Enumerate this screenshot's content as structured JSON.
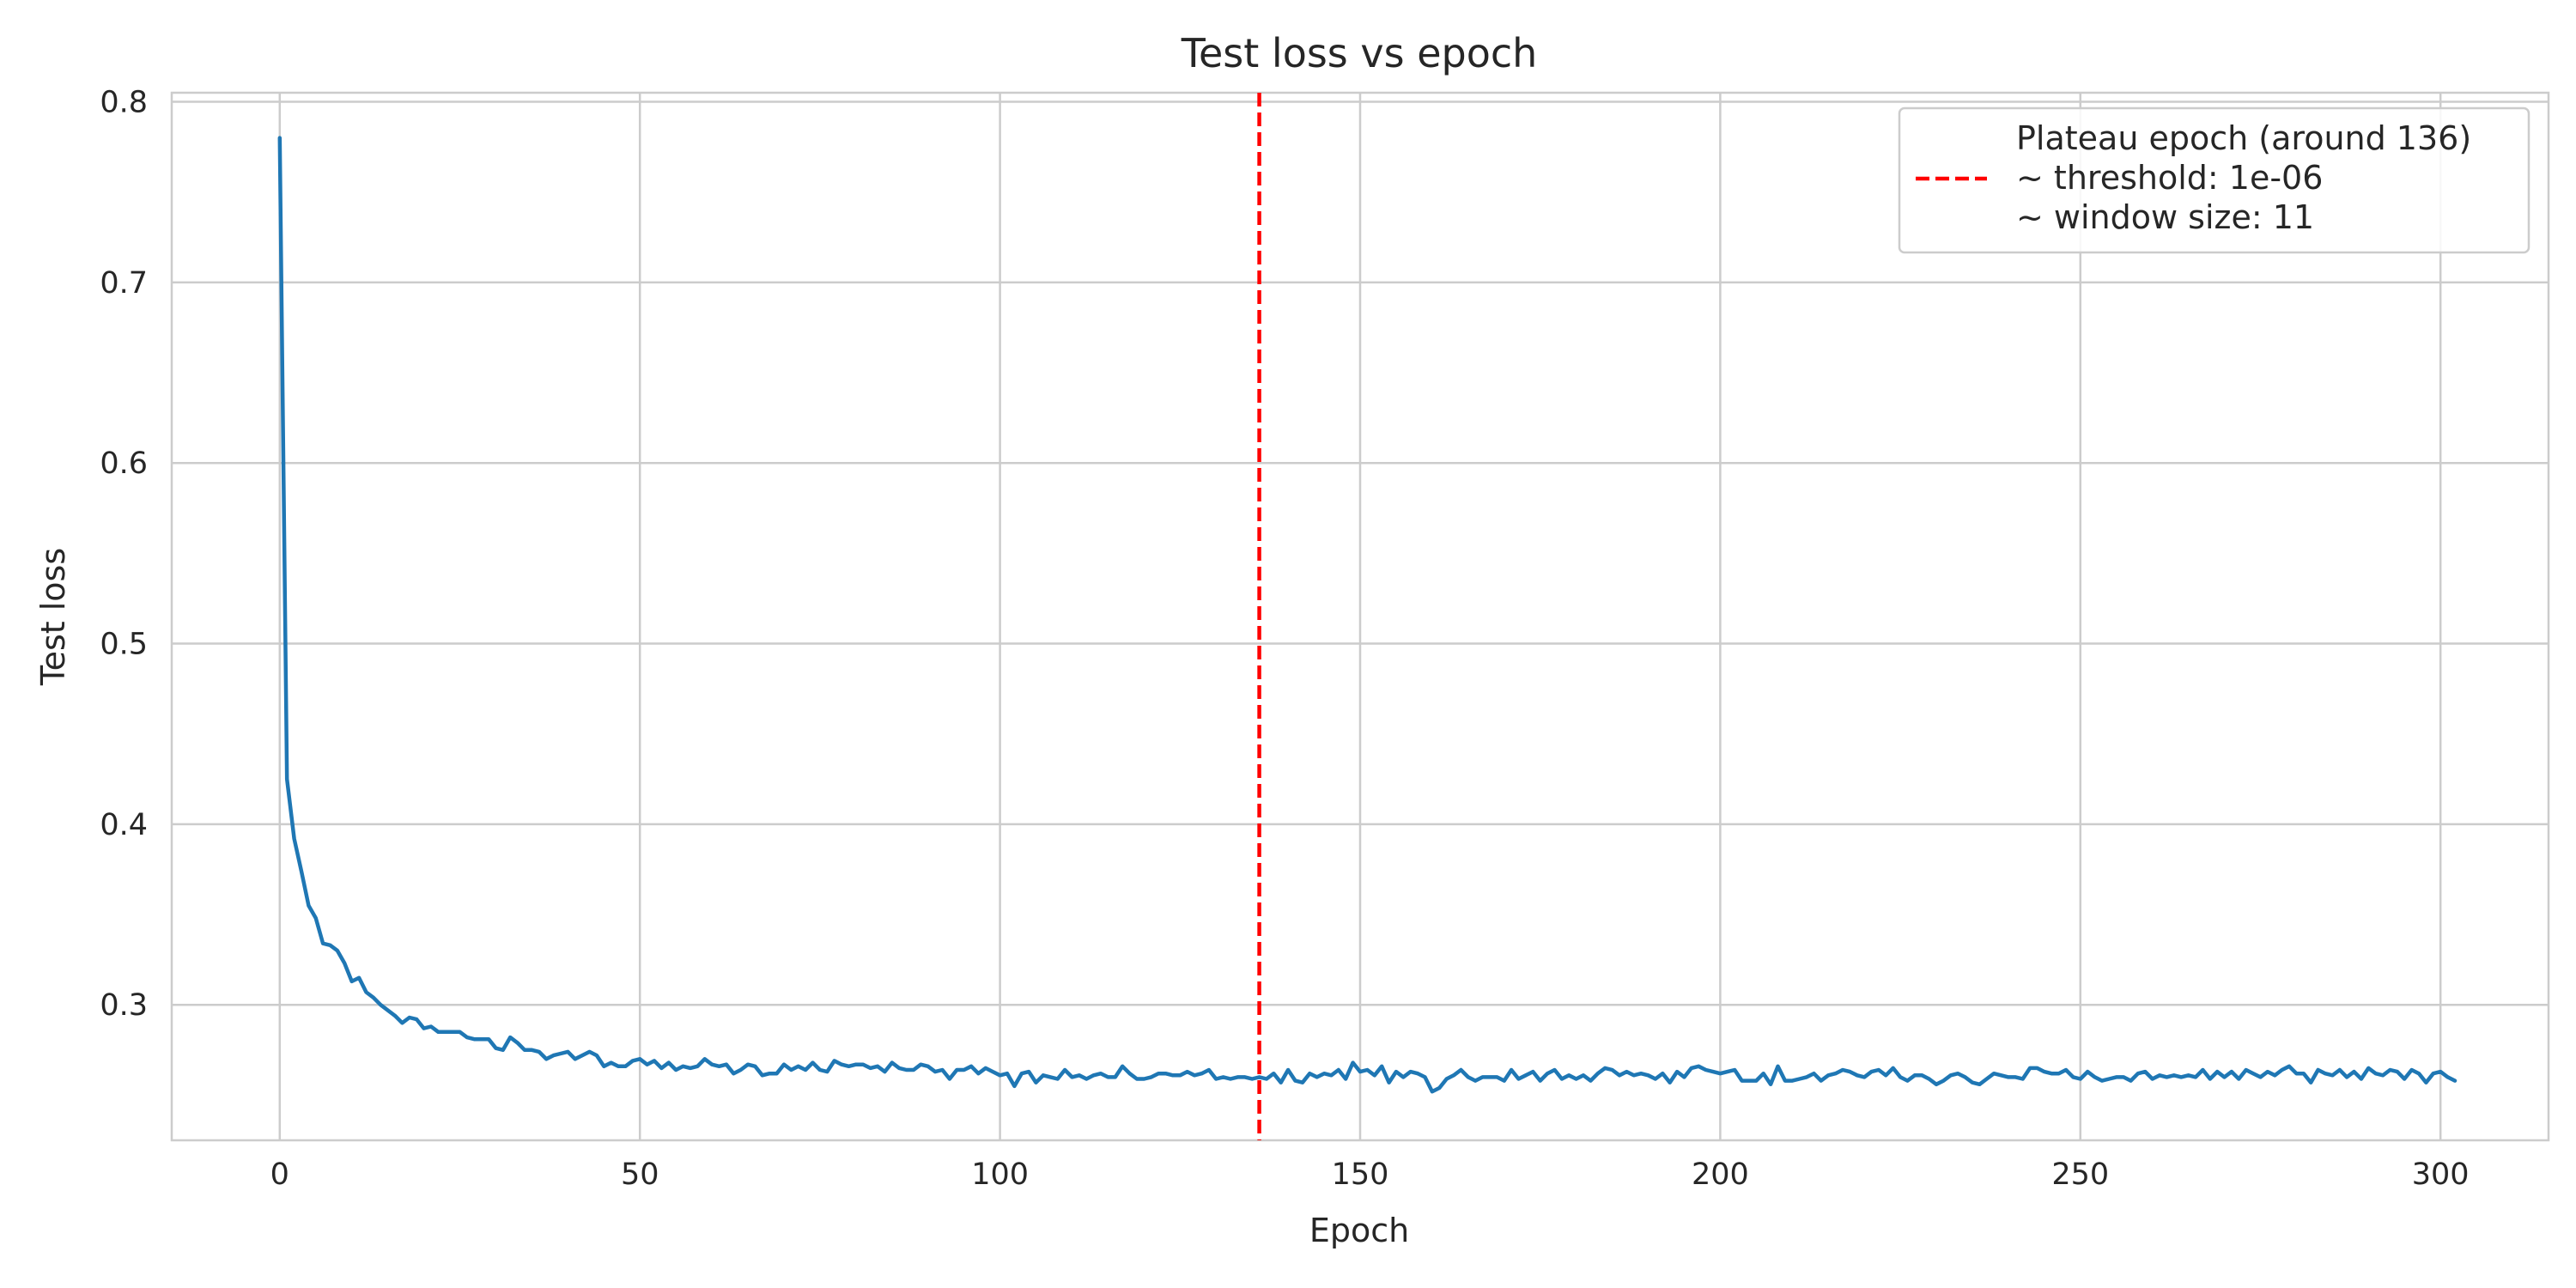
{
  "chart_data": {
    "type": "line",
    "title": "Test loss vs epoch",
    "xlabel": "Epoch",
    "ylabel": "Test loss",
    "xlim": [
      -15,
      315
    ],
    "ylim": [
      0.225,
      0.805
    ],
    "xticks": [
      0,
      50,
      100,
      150,
      200,
      250,
      300
    ],
    "yticks": [
      0.3,
      0.4,
      0.5,
      0.6,
      0.7,
      0.8
    ],
    "grid": true,
    "legend_position": "top-right",
    "colors": {
      "series": "#1f77b4",
      "plateau": "#ff0000"
    },
    "series": [
      {
        "x_start": 0,
        "x_step": 1,
        "values": [
          0.78,
          0.425,
          0.392,
          0.374,
          0.355,
          0.348,
          0.334,
          0.333,
          0.33,
          0.323,
          0.313,
          0.315,
          0.307,
          0.304,
          0.3,
          0.297,
          0.294,
          0.29,
          0.293,
          0.292,
          0.287,
          0.288,
          0.285,
          0.285,
          0.285,
          0.285,
          0.282,
          0.281,
          0.281,
          0.281,
          0.276,
          0.275,
          0.282,
          0.279,
          0.275,
          0.275,
          0.274,
          0.27,
          0.272,
          0.273,
          0.274,
          0.27,
          0.272,
          0.274,
          0.272,
          0.266,
          0.268,
          0.266,
          0.266,
          0.269,
          0.27,
          0.267,
          0.269,
          0.265,
          0.268,
          0.264,
          0.266,
          0.265,
          0.266,
          0.27,
          0.267,
          0.266,
          0.267,
          0.262,
          0.264,
          0.267,
          0.266,
          0.261,
          0.262,
          0.262,
          0.267,
          0.264,
          0.266,
          0.264,
          0.268,
          0.264,
          0.263,
          0.269,
          0.267,
          0.266,
          0.267,
          0.267,
          0.265,
          0.266,
          0.263,
          0.268,
          0.265,
          0.264,
          0.264,
          0.267,
          0.266,
          0.263,
          0.264,
          0.259,
          0.264,
          0.264,
          0.266,
          0.262,
          0.265,
          0.263,
          0.261,
          0.262,
          0.255,
          0.262,
          0.263,
          0.257,
          0.261,
          0.26,
          0.259,
          0.264,
          0.26,
          0.261,
          0.259,
          0.261,
          0.262,
          0.26,
          0.26,
          0.266,
          0.262,
          0.259,
          0.259,
          0.26,
          0.262,
          0.262,
          0.261,
          0.261,
          0.263,
          0.261,
          0.262,
          0.264,
          0.259,
          0.26,
          0.259,
          0.26,
          0.26,
          0.259,
          0.26,
          0.259,
          0.262,
          0.257,
          0.264,
          0.258,
          0.257,
          0.262,
          0.26,
          0.262,
          0.261,
          0.264,
          0.259,
          0.268,
          0.263,
          0.264,
          0.261,
          0.266,
          0.257,
          0.263,
          0.26,
          0.263,
          0.262,
          0.26,
          0.252,
          0.254,
          0.259,
          0.261,
          0.264,
          0.26,
          0.258,
          0.26,
          0.26,
          0.26,
          0.258,
          0.264,
          0.259,
          0.261,
          0.263,
          0.258,
          0.262,
          0.264,
          0.259,
          0.261,
          0.259,
          0.261,
          0.258,
          0.262,
          0.265,
          0.264,
          0.261,
          0.263,
          0.261,
          0.262,
          0.261,
          0.259,
          0.262,
          0.257,
          0.263,
          0.26,
          0.265,
          0.266,
          0.264,
          0.263,
          0.262,
          0.263,
          0.264,
          0.258,
          0.258,
          0.258,
          0.262,
          0.256,
          0.266,
          0.258,
          0.258,
          0.259,
          0.26,
          0.262,
          0.258,
          0.261,
          0.262,
          0.264,
          0.263,
          0.261,
          0.26,
          0.263,
          0.264,
          0.261,
          0.265,
          0.26,
          0.258,
          0.261,
          0.261,
          0.259,
          0.256,
          0.258,
          0.261,
          0.262,
          0.26,
          0.257,
          0.256,
          0.259,
          0.262,
          0.261,
          0.26,
          0.26,
          0.259,
          0.265,
          0.265,
          0.263,
          0.262,
          0.262,
          0.264,
          0.26,
          0.259,
          0.263,
          0.26,
          0.258,
          0.259,
          0.26,
          0.26,
          0.258,
          0.262,
          0.263,
          0.259,
          0.261,
          0.26,
          0.261,
          0.26,
          0.261,
          0.26,
          0.264,
          0.259,
          0.263,
          0.26,
          0.263,
          0.259,
          0.264,
          0.262,
          0.26,
          0.263,
          0.261,
          0.264,
          0.266,
          0.262,
          0.262,
          0.257,
          0.264,
          0.262,
          0.261,
          0.264,
          0.26,
          0.263,
          0.259,
          0.265,
          0.262,
          0.261,
          0.264,
          0.263,
          0.259,
          0.264,
          0.262,
          0.257,
          0.262,
          0.263,
          0.26,
          0.258
        ]
      }
    ],
    "plateau": {
      "x": 136,
      "legend_lines": [
        "Plateau epoch (around 136)",
        "~ threshold: 1e-06",
        "~ window size: 11"
      ]
    }
  }
}
